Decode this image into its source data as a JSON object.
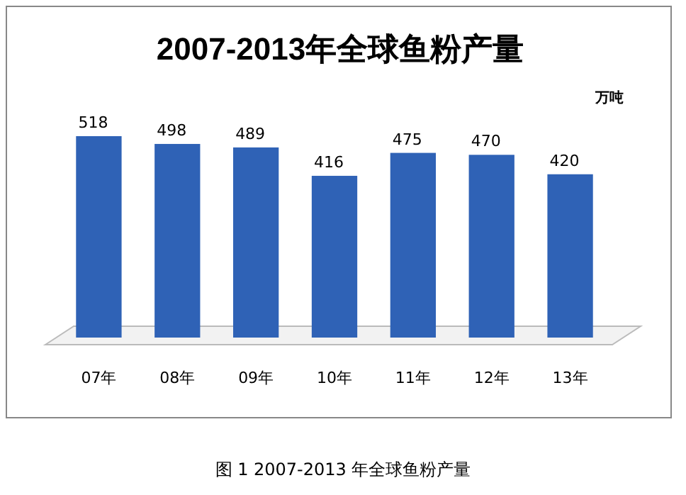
{
  "chart_data": {
    "type": "bar",
    "title": "2007-2013年全球鱼粉产量",
    "categories": [
      "07年",
      "08年",
      "09年",
      "10年",
      "11年",
      "12年",
      "13年"
    ],
    "values": [
      518,
      498,
      489,
      416,
      475,
      470,
      420
    ],
    "color": "#2f62b6",
    "data_labels": true,
    "annotations": [
      "万吨",
      "图 1  2007-2013 年全球鱼粉产量"
    ]
  }
}
